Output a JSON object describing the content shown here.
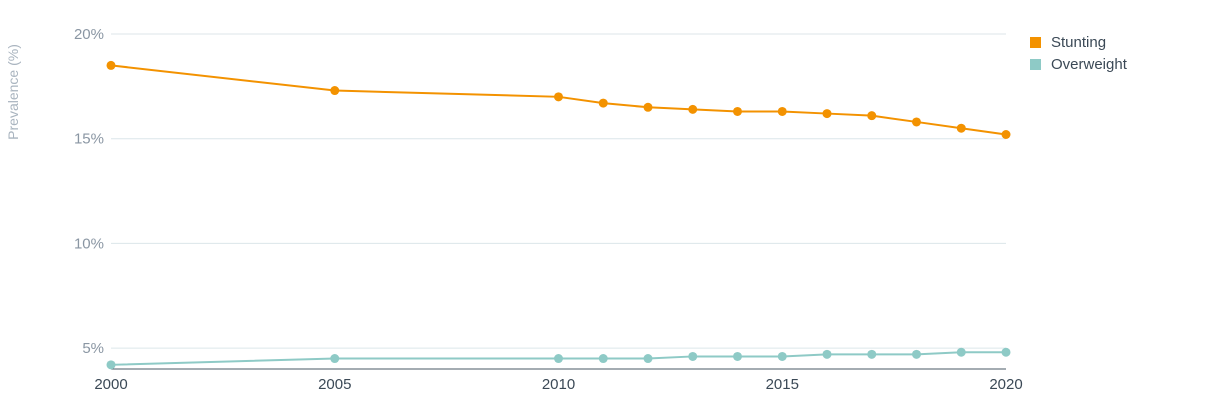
{
  "chart_data": {
    "type": "line",
    "title": "",
    "xlabel": "",
    "ylabel": "Prevalence (%)",
    "x": [
      2000,
      2005,
      2010,
      2011,
      2012,
      2013,
      2014,
      2015,
      2016,
      2017,
      2018,
      2019,
      2020
    ],
    "x_ticks": [
      "2000",
      "2005",
      "2010",
      "2015",
      "2020"
    ],
    "y_ticks": [
      "5%",
      "10%",
      "15%",
      "20%"
    ],
    "ylim": [
      4,
      20
    ],
    "grid": "horizontal",
    "legend_position": "top-right",
    "series": [
      {
        "name": "Stunting",
        "color": "#f39200",
        "values": [
          18.5,
          17.3,
          17.0,
          16.7,
          16.5,
          16.4,
          16.3,
          16.3,
          16.2,
          16.1,
          15.8,
          15.5,
          15.2
        ]
      },
      {
        "name": "Overweight",
        "color": "#8ecac6",
        "values": [
          4.2,
          4.5,
          4.5,
          4.5,
          4.5,
          4.6,
          4.6,
          4.6,
          4.7,
          4.7,
          4.7,
          4.8,
          4.8
        ]
      }
    ]
  }
}
